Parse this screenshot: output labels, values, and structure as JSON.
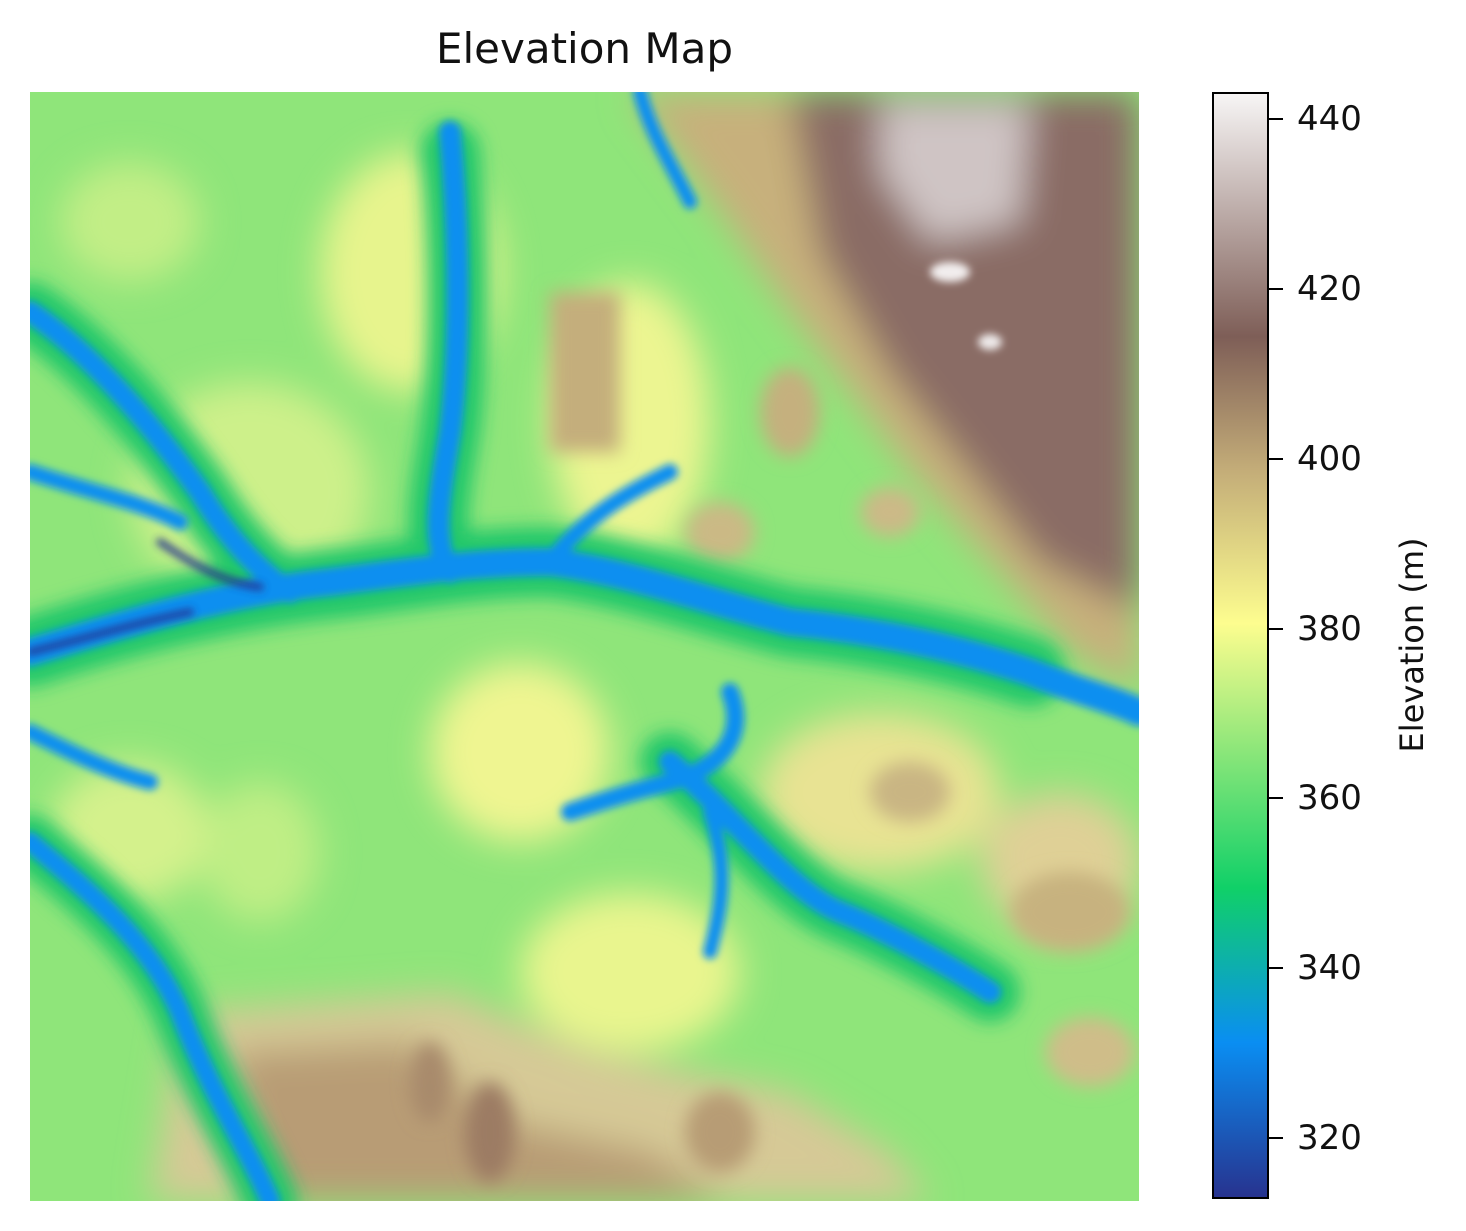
{
  "title": "Elevation Map",
  "colorbar": {
    "label": "Elevation (m)",
    "min": 313,
    "max": 443,
    "ticks": [
      "320",
      "340",
      "360",
      "380",
      "400",
      "420",
      "440"
    ],
    "tick_values": [
      320,
      340,
      360,
      380,
      400,
      420,
      440
    ],
    "colormap": "terrain",
    "colors": {
      "low": "#27338f",
      "blue": "#0a8ef2",
      "green": "#10d068",
      "light_green": "#9be97c",
      "yellow": "#fdfd8f",
      "tan": "#c3ac78",
      "brown": "#7e5e57",
      "high": "#f7f5f5"
    }
  }
}
